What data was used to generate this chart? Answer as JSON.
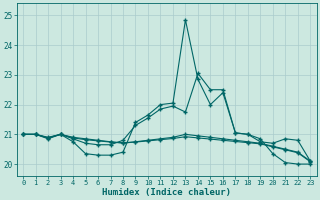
{
  "xlabel": "Humidex (Indice chaleur)",
  "bg_color": "#cce8e0",
  "grid_color": "#aacccc",
  "line_color": "#006666",
  "xlim": [
    -0.5,
    23.5
  ],
  "ylim": [
    19.6,
    25.4
  ],
  "yticks": [
    20,
    21,
    22,
    23,
    24,
    25
  ],
  "xticks": [
    0,
    1,
    2,
    3,
    4,
    5,
    6,
    7,
    8,
    9,
    10,
    11,
    12,
    13,
    14,
    15,
    16,
    17,
    18,
    19,
    20,
    21,
    22,
    23
  ],
  "lines": [
    {
      "x": [
        0,
        1,
        2,
        3,
        4,
        5,
        6,
        7,
        8,
        9,
        10,
        11,
        12,
        13,
        14,
        15,
        16,
        17,
        18,
        19,
        20,
        21,
        22,
        23
      ],
      "y": [
        21.0,
        21.0,
        20.88,
        21.0,
        20.75,
        20.35,
        20.3,
        20.3,
        20.4,
        21.4,
        21.65,
        22.0,
        22.05,
        24.85,
        22.85,
        22.0,
        22.4,
        21.05,
        21.0,
        20.85,
        20.35,
        20.05,
        20.0,
        20.0
      ]
    },
    {
      "x": [
        0,
        1,
        2,
        3,
        4,
        5,
        6,
        7,
        8,
        9,
        10,
        11,
        12,
        13,
        14,
        15,
        16,
        17,
        18,
        19,
        20,
        21,
        22,
        23
      ],
      "y": [
        21.0,
        21.0,
        20.85,
        21.0,
        20.85,
        20.7,
        20.65,
        20.65,
        20.8,
        21.3,
        21.55,
        21.85,
        21.95,
        21.75,
        23.05,
        22.5,
        22.5,
        21.05,
        21.0,
        20.75,
        20.7,
        20.85,
        20.8,
        20.1
      ]
    },
    {
      "x": [
        0,
        1,
        2,
        3,
        4,
        5,
        6,
        7,
        8,
        9,
        10,
        11,
        12,
        13,
        14,
        15,
        16,
        17,
        18,
        19,
        20,
        21,
        22,
        23
      ],
      "y": [
        21.0,
        21.0,
        20.9,
        21.0,
        20.9,
        20.85,
        20.8,
        20.75,
        20.7,
        20.75,
        20.8,
        20.85,
        20.9,
        21.0,
        20.95,
        20.9,
        20.85,
        20.8,
        20.75,
        20.7,
        20.6,
        20.5,
        20.4,
        20.1
      ]
    },
    {
      "x": [
        0,
        1,
        2,
        3,
        4,
        5,
        6,
        7,
        8,
        9,
        10,
        11,
        12,
        13,
        14,
        15,
        16,
        17,
        18,
        19,
        20,
        21,
        22,
        23
      ],
      "y": [
        21.0,
        21.0,
        20.88,
        21.0,
        20.88,
        20.82,
        20.78,
        20.74,
        20.72,
        20.74,
        20.78,
        20.82,
        20.86,
        20.92,
        20.88,
        20.84,
        20.8,
        20.76,
        20.72,
        20.68,
        20.58,
        20.48,
        20.38,
        20.08
      ]
    }
  ]
}
